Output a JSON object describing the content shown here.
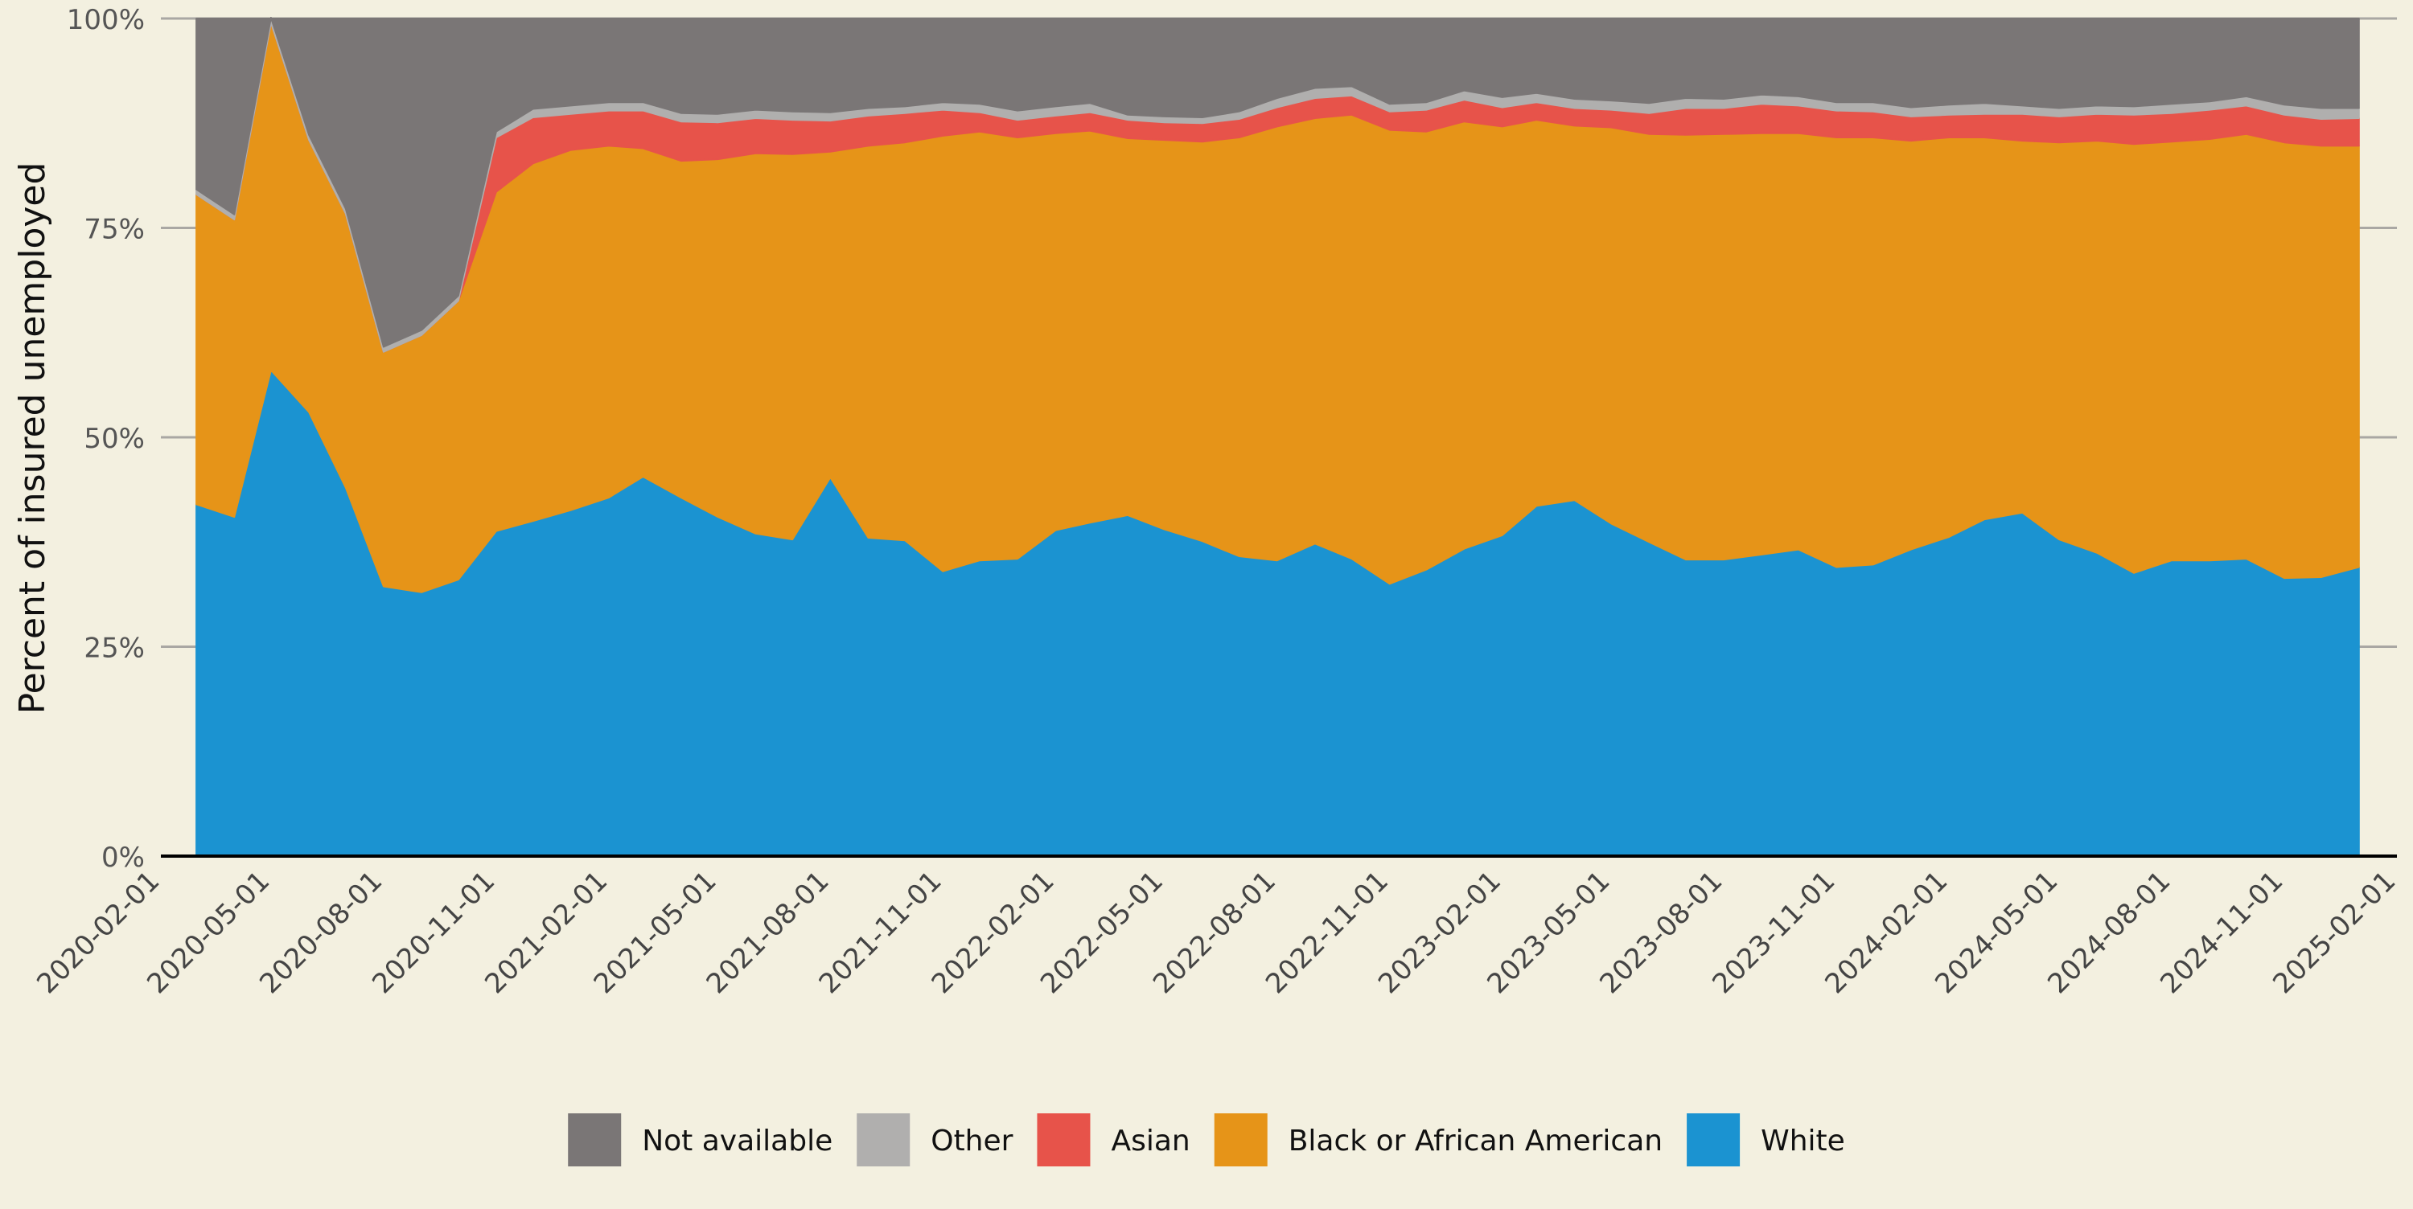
{
  "chart_data": {
    "type": "area",
    "stacked": true,
    "normalized": true,
    "ylabel": "Percent of insured unemployed",
    "xlabel": "",
    "title": "",
    "ylim": [
      0,
      1
    ],
    "y_ticks": [
      "0%",
      "25%",
      "50%",
      "75%",
      "100%"
    ],
    "x_ticks": [
      "2020-02-01",
      "2020-05-01",
      "2020-08-01",
      "2020-11-01",
      "2021-02-01",
      "2021-05-01",
      "2021-08-01",
      "2021-11-01",
      "2022-02-01",
      "2022-05-01",
      "2022-08-01",
      "2022-11-01",
      "2023-02-01",
      "2023-05-01",
      "2023-08-01",
      "2023-11-01",
      "2024-02-01",
      "2024-05-01",
      "2024-08-01",
      "2024-11-01",
      "2025-02-01"
    ],
    "x_range": [
      "2020-02-01",
      "2025-02-01"
    ],
    "grid": "horizontal",
    "legend": {
      "position": "bottom-center",
      "order": [
        "Not available",
        "Other",
        "Asian",
        "Black or African American",
        "White"
      ]
    },
    "x": [
      "2020-03-01",
      "2020-04-01",
      "2020-05-01",
      "2020-06-01",
      "2020-07-01",
      "2020-08-01",
      "2020-09-01",
      "2020-10-01",
      "2020-11-01",
      "2020-12-01",
      "2021-01-01",
      "2021-02-01",
      "2021-03-01",
      "2021-04-01",
      "2021-05-01",
      "2021-06-01",
      "2021-07-01",
      "2021-08-01",
      "2021-09-01",
      "2021-10-01",
      "2021-11-01",
      "2021-12-01",
      "2022-01-01",
      "2022-02-01",
      "2022-03-01",
      "2022-04-01",
      "2022-05-01",
      "2022-06-01",
      "2022-07-01",
      "2022-08-01",
      "2022-09-01",
      "2022-10-01",
      "2022-11-01",
      "2022-12-01",
      "2023-01-01",
      "2023-02-01",
      "2023-03-01",
      "2023-04-01",
      "2023-05-01",
      "2023-06-01",
      "2023-07-01",
      "2023-08-01",
      "2023-09-01",
      "2023-10-01",
      "2023-11-01",
      "2023-12-01",
      "2024-01-01",
      "2024-02-01",
      "2024-03-01",
      "2024-04-01",
      "2024-05-01",
      "2024-06-01",
      "2024-07-01",
      "2024-08-01",
      "2024-09-01",
      "2024-10-01",
      "2024-11-01",
      "2024-12-01",
      "2025-01-01"
    ],
    "series": [
      {
        "name": "White",
        "color": "#1b93d1",
        "values": [
          0.42,
          0.405,
          0.58,
          0.53,
          0.44,
          0.322,
          0.315,
          0.33,
          0.388,
          0.4,
          0.413,
          0.428,
          0.453,
          0.428,
          0.405,
          0.385,
          0.378,
          0.452,
          0.38,
          0.377,
          0.34,
          0.353,
          0.355,
          0.389,
          0.398,
          0.407,
          0.39,
          0.376,
          0.358,
          0.353,
          0.373,
          0.355,
          0.325,
          0.342,
          0.367,
          0.383,
          0.418,
          0.425,
          0.397,
          0.375,
          0.354,
          0.354,
          0.36,
          0.366,
          0.345,
          0.348,
          0.366,
          0.381,
          0.402,
          0.41,
          0.378,
          0.362,
          0.338,
          0.353,
          0.353,
          0.355,
          0.332,
          0.333,
          0.345
        ]
      },
      {
        "name": "Black or African American",
        "color": "#e69418",
        "values": [
          0.37,
          0.355,
          0.415,
          0.325,
          0.327,
          0.28,
          0.307,
          0.333,
          0.405,
          0.427,
          0.43,
          0.42,
          0.392,
          0.402,
          0.427,
          0.454,
          0.46,
          0.389,
          0.468,
          0.475,
          0.52,
          0.512,
          0.503,
          0.474,
          0.468,
          0.45,
          0.465,
          0.477,
          0.5,
          0.518,
          0.508,
          0.53,
          0.542,
          0.523,
          0.51,
          0.488,
          0.461,
          0.447,
          0.473,
          0.487,
          0.507,
          0.508,
          0.503,
          0.497,
          0.513,
          0.51,
          0.488,
          0.477,
          0.456,
          0.444,
          0.474,
          0.492,
          0.512,
          0.5,
          0.503,
          0.507,
          0.52,
          0.515,
          0.503
        ]
      },
      {
        "name": "Asian",
        "color": "#e7534a",
        "values": [
          0,
          0,
          0,
          0,
          0,
          0,
          0,
          0,
          0.065,
          0.055,
          0.043,
          0.042,
          0.045,
          0.047,
          0.044,
          0.042,
          0.041,
          0.037,
          0.036,
          0.035,
          0.031,
          0.023,
          0.021,
          0.021,
          0.022,
          0.022,
          0.021,
          0.022,
          0.022,
          0.023,
          0.024,
          0.023,
          0.022,
          0.026,
          0.026,
          0.023,
          0.021,
          0.021,
          0.021,
          0.025,
          0.032,
          0.031,
          0.035,
          0.033,
          0.032,
          0.031,
          0.029,
          0.027,
          0.028,
          0.032,
          0.031,
          0.032,
          0.035,
          0.034,
          0.035,
          0.034,
          0.033,
          0.032,
          0.033
        ]
      },
      {
        "name": "Other",
        "color": "#b0afae",
        "values": [
          0.006,
          0.006,
          0.006,
          0.006,
          0.006,
          0.006,
          0.006,
          0.006,
          0.007,
          0.01,
          0.01,
          0.01,
          0.01,
          0.01,
          0.01,
          0.01,
          0.01,
          0.01,
          0.009,
          0.008,
          0.009,
          0.01,
          0.011,
          0.011,
          0.011,
          0.006,
          0.007,
          0.007,
          0.009,
          0.011,
          0.012,
          0.011,
          0.009,
          0.009,
          0.011,
          0.012,
          0.011,
          0.011,
          0.011,
          0.012,
          0.012,
          0.011,
          0.011,
          0.011,
          0.01,
          0.011,
          0.011,
          0.012,
          0.013,
          0.01,
          0.01,
          0.01,
          0.01,
          0.011,
          0.01,
          0.011,
          0.012,
          0.013,
          0.012
        ]
      },
      {
        "name": "Not available",
        "color": "#7a7676",
        "values": [
          0.204,
          0.234,
          -0.001,
          0.139,
          0.227,
          0.392,
          0.372,
          0.331,
          0.135,
          0.108,
          0.104,
          0.1,
          0.1,
          0.113,
          0.114,
          0.109,
          0.111,
          0.112,
          0.107,
          0.105,
          0.1,
          0.102,
          0.11,
          0.105,
          0.101,
          0.115,
          0.117,
          0.118,
          0.111,
          0.095,
          0.083,
          0.081,
          0.102,
          0.1,
          0.086,
          0.094,
          0.089,
          0.096,
          0.098,
          0.101,
          0.095,
          0.096,
          0.091,
          0.093,
          0.1,
          0.1,
          0.106,
          0.103,
          0.101,
          0.104,
          0.107,
          0.104,
          0.105,
          0.102,
          0.099,
          0.093,
          0.103,
          0.107,
          0.107
        ]
      }
    ]
  }
}
